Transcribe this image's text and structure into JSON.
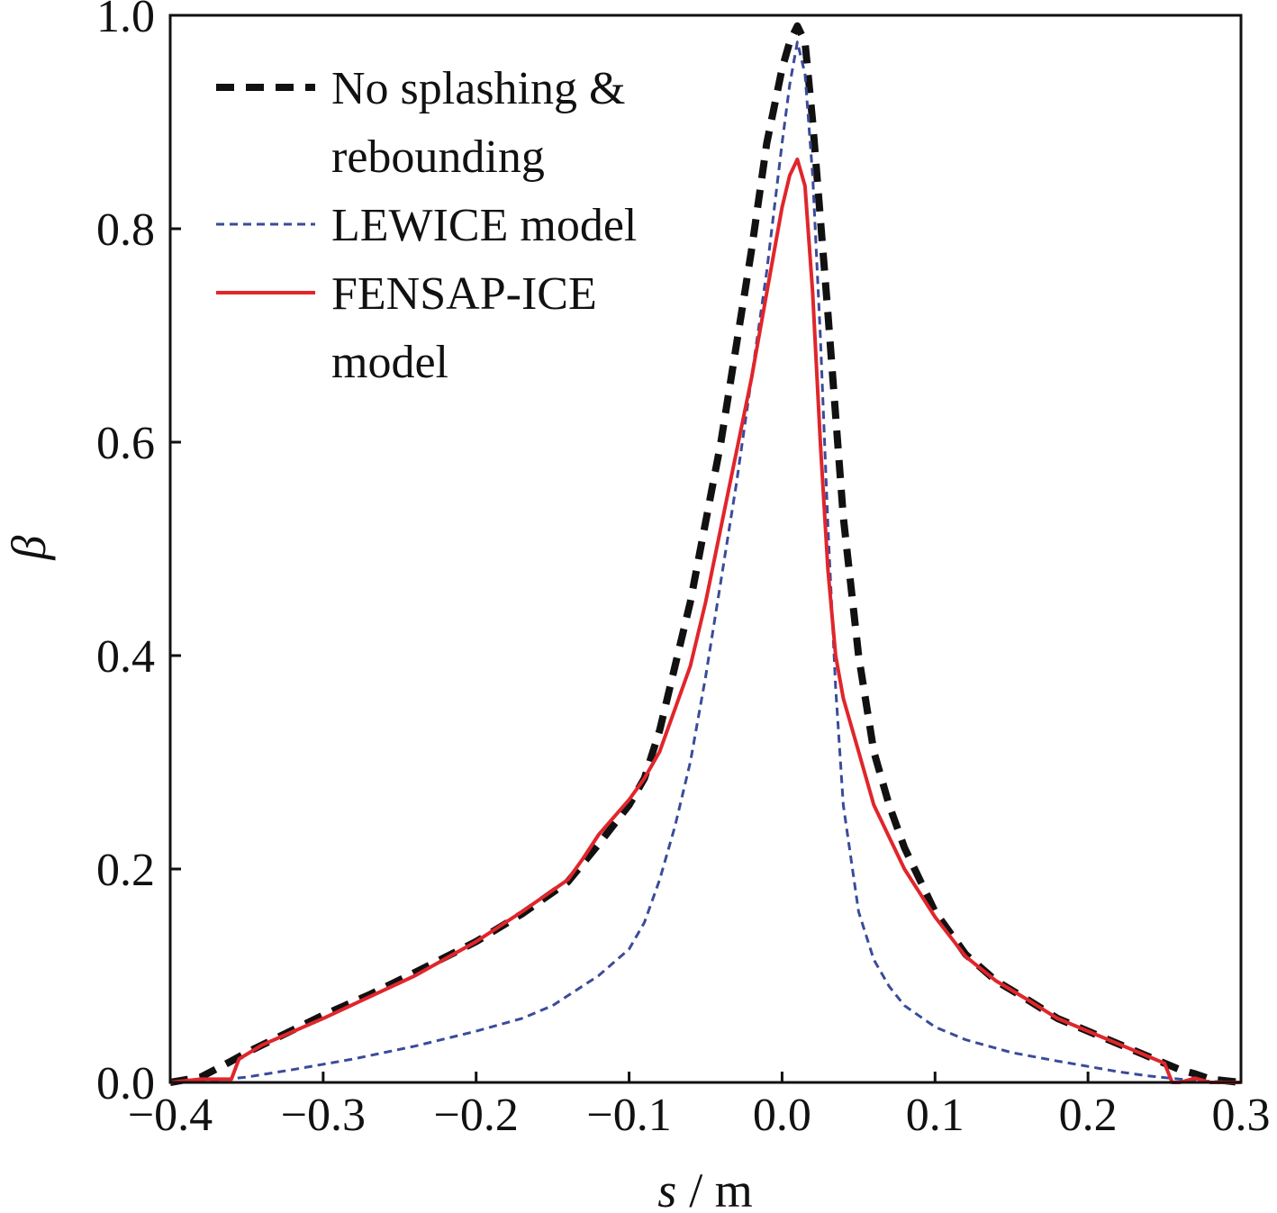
{
  "chart_data": {
    "type": "line",
    "xlabel": {
      "var": "s",
      "unit": "/ m"
    },
    "ylabel": "β",
    "xlim": [
      -0.4,
      0.3
    ],
    "ylim": [
      0.0,
      1.0
    ],
    "grid": false,
    "legend_position": "top-left",
    "x_ticks": [
      {
        "value": -0.4,
        "label": "−0.4"
      },
      {
        "value": -0.3,
        "label": "−0.3"
      },
      {
        "value": -0.2,
        "label": "−0.2"
      },
      {
        "value": -0.1,
        "label": "−0.1"
      },
      {
        "value": 0.0,
        "label": "0.0"
      },
      {
        "value": 0.1,
        "label": "0.1"
      },
      {
        "value": 0.2,
        "label": "0.2"
      },
      {
        "value": 0.3,
        "label": "0.3"
      }
    ],
    "y_ticks": [
      {
        "value": 0.0,
        "label": "0.0"
      },
      {
        "value": 0.2,
        "label": "0.2"
      },
      {
        "value": 0.4,
        "label": "0.4"
      },
      {
        "value": 0.6,
        "label": "0.6"
      },
      {
        "value": 0.8,
        "label": "0.8"
      },
      {
        "value": 1.0,
        "label": "1.0"
      }
    ],
    "series": [
      {
        "name": "No splashing & rebounding",
        "legend_lines": [
          "No splashing &",
          "rebounding"
        ],
        "color": "#111111",
        "style": "thick-dash",
        "x": [
          -0.4,
          -0.38,
          -0.36,
          -0.35,
          -0.33,
          -0.3,
          -0.27,
          -0.24,
          -0.2,
          -0.17,
          -0.14,
          -0.12,
          -0.1,
          -0.09,
          -0.08,
          -0.07,
          -0.06,
          -0.05,
          -0.04,
          -0.03,
          -0.02,
          -0.01,
          0.0,
          0.005,
          0.01,
          0.015,
          0.02,
          0.03,
          0.04,
          0.05,
          0.06,
          0.07,
          0.08,
          0.1,
          0.12,
          0.14,
          0.16,
          0.18,
          0.2,
          0.22,
          0.24,
          0.25,
          0.26,
          0.27,
          0.28,
          0.3
        ],
        "values": [
          0.0,
          0.005,
          0.02,
          0.028,
          0.042,
          0.063,
          0.082,
          0.103,
          0.132,
          0.158,
          0.188,
          0.223,
          0.26,
          0.285,
          0.33,
          0.39,
          0.45,
          0.525,
          0.6,
          0.69,
          0.78,
          0.88,
          0.95,
          0.975,
          0.99,
          0.975,
          0.9,
          0.72,
          0.53,
          0.4,
          0.31,
          0.26,
          0.22,
          0.16,
          0.12,
          0.095,
          0.078,
          0.06,
          0.048,
          0.036,
          0.024,
          0.018,
          0.012,
          0.008,
          0.003,
          0.0
        ]
      },
      {
        "name": "LEWICE model",
        "legend_lines": [
          "LEWICE model"
        ],
        "color": "#3a4b99",
        "style": "thin-dash",
        "x": [
          -0.4,
          -0.37,
          -0.35,
          -0.32,
          -0.28,
          -0.24,
          -0.2,
          -0.17,
          -0.15,
          -0.12,
          -0.1,
          -0.09,
          -0.08,
          -0.07,
          -0.06,
          -0.05,
          -0.04,
          -0.03,
          -0.02,
          -0.01,
          0.0,
          0.005,
          0.01,
          0.015,
          0.02,
          0.025,
          0.03,
          0.035,
          0.04,
          0.05,
          0.06,
          0.07,
          0.08,
          0.1,
          0.12,
          0.15,
          0.18,
          0.2,
          0.22,
          0.24,
          0.26,
          0.28,
          0.3
        ],
        "values": [
          0.0,
          0.002,
          0.005,
          0.012,
          0.022,
          0.034,
          0.048,
          0.06,
          0.072,
          0.1,
          0.125,
          0.15,
          0.19,
          0.24,
          0.3,
          0.38,
          0.47,
          0.56,
          0.66,
          0.76,
          0.88,
          0.935,
          0.975,
          0.945,
          0.85,
          0.7,
          0.52,
          0.37,
          0.26,
          0.16,
          0.115,
          0.09,
          0.072,
          0.052,
          0.04,
          0.028,
          0.02,
          0.015,
          0.01,
          0.006,
          0.003,
          0.001,
          0.0
        ]
      },
      {
        "name": "FENSAP-ICE model",
        "legend_lines": [
          "FENSAP-ICE",
          "model"
        ],
        "color": "#e0262b",
        "style": "solid",
        "x": [
          -0.4,
          -0.38,
          -0.36,
          -0.355,
          -0.34,
          -0.3,
          -0.27,
          -0.24,
          -0.2,
          -0.17,
          -0.14,
          -0.13,
          -0.12,
          -0.1,
          -0.09,
          -0.08,
          -0.07,
          -0.06,
          -0.05,
          -0.04,
          -0.03,
          -0.02,
          -0.01,
          0.0,
          0.005,
          0.01,
          0.015,
          0.02,
          0.025,
          0.03,
          0.035,
          0.04,
          0.05,
          0.06,
          0.07,
          0.08,
          0.1,
          0.12,
          0.14,
          0.16,
          0.18,
          0.2,
          0.22,
          0.24,
          0.25,
          0.255,
          0.26,
          0.27,
          0.28,
          0.3
        ],
        "values": [
          0.0,
          0.003,
          0.003,
          0.022,
          0.035,
          0.06,
          0.08,
          0.1,
          0.132,
          0.16,
          0.19,
          0.21,
          0.232,
          0.265,
          0.285,
          0.31,
          0.35,
          0.39,
          0.45,
          0.52,
          0.59,
          0.66,
          0.74,
          0.82,
          0.85,
          0.865,
          0.84,
          0.74,
          0.6,
          0.48,
          0.4,
          0.36,
          0.31,
          0.26,
          0.23,
          0.2,
          0.155,
          0.118,
          0.095,
          0.078,
          0.06,
          0.048,
          0.036,
          0.024,
          0.018,
          0.0,
          0.0,
          0.004,
          0.0,
          0.0
        ]
      }
    ]
  }
}
